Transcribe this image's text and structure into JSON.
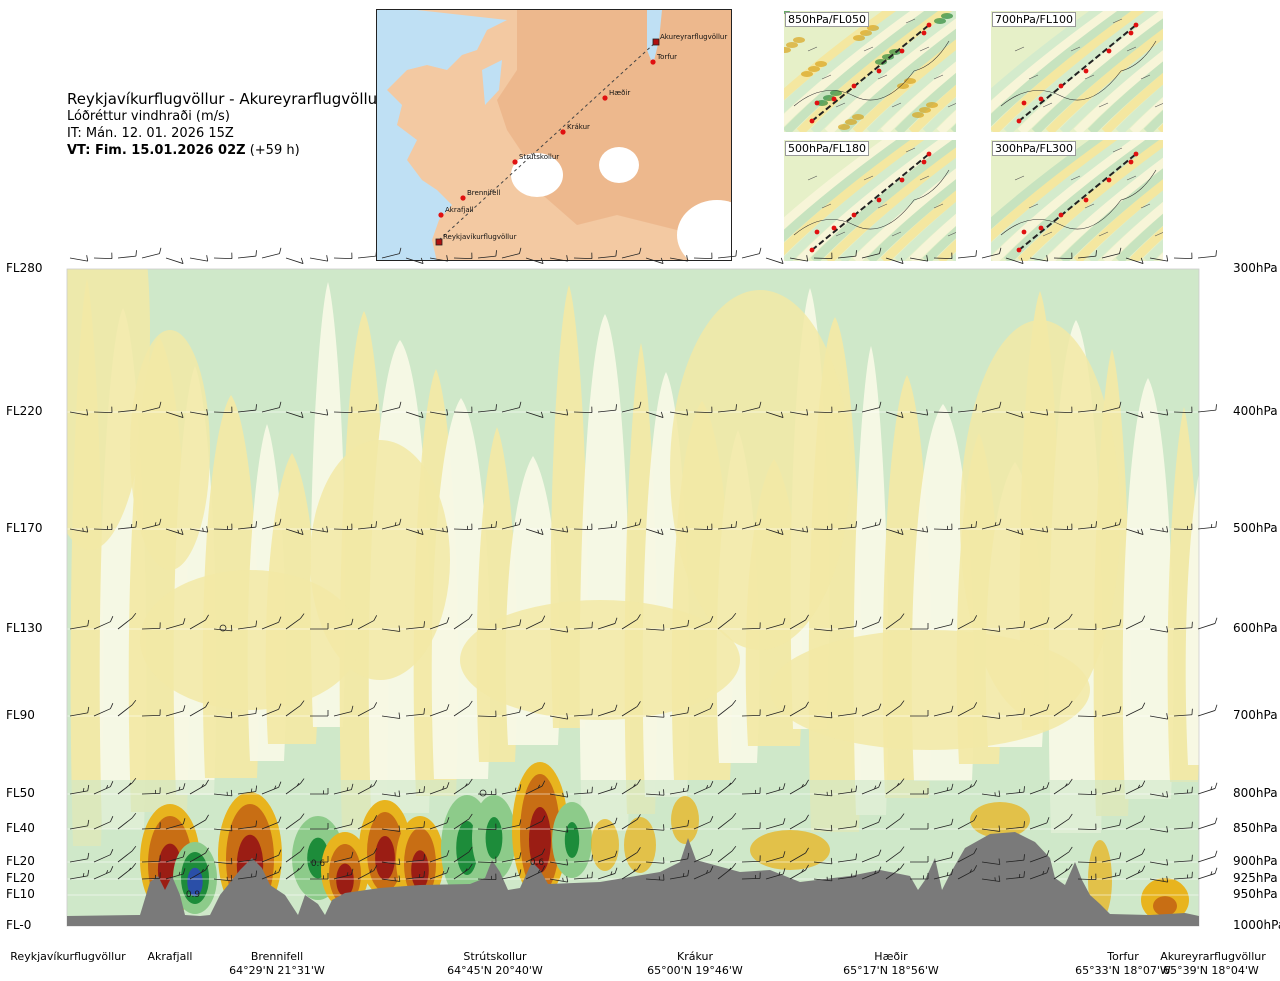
{
  "header": {
    "title": "Reykjavíkurflugvöllur - Akureyrarflugvöllur",
    "subtitle": "Lóðréttur vindhraði (m/s)",
    "issue_time": "IT: Mán. 12. 01. 2026 15Z",
    "valid_time_bold": "VT: Fim. 15.01.2026 02Z",
    "valid_time_offset": "(+59 h)"
  },
  "map_inset": {
    "waypoints": [
      {
        "name": "Akureyrarflugvöllur"
      },
      {
        "name": "Torfur"
      },
      {
        "name": "Hæðir"
      },
      {
        "name": "Krákur"
      },
      {
        "name": "Strútskollur"
      },
      {
        "name": "Brennifell"
      },
      {
        "name": "Akrafjall"
      },
      {
        "name": "Reykjavíkurflugvöllur"
      }
    ]
  },
  "mini_maps": [
    {
      "label": "850hPa/FL050"
    },
    {
      "label": "700hPa/FL100"
    },
    {
      "label": "500hPa/FL180"
    },
    {
      "label": "300hPa/FL300"
    }
  ],
  "chart_data": {
    "type": "heatmap",
    "title": "Reykjavíkurflugvöllur - Akureyrarflugvöllur",
    "variable": "Lóðréttur vindhraði (m/s)",
    "y_levels_fl": [
      "FL280",
      "FL220",
      "FL170",
      "FL130",
      "FL90",
      "FL50",
      "FL40",
      "FL20",
      "FL20",
      "FL10",
      "FL-0"
    ],
    "y_levels_hpa": [
      "300hPa",
      "400hPa",
      "500hPa",
      "600hPa",
      "700hPa",
      "800hPa",
      "850hPa",
      "900hPa",
      "925hPa",
      "950hPa",
      "1000hPa"
    ],
    "x_locations": [
      {
        "name": "Reykjavíkurflugvöllur",
        "coord": ""
      },
      {
        "name": "Akrafjall",
        "coord": ""
      },
      {
        "name": "Brennifell",
        "coord": "64°29'N 21°31'W"
      },
      {
        "name": "Strútskollur",
        "coord": "64°45'N 20°40'W"
      },
      {
        "name": "Krákur",
        "coord": "65°00'N 19°46'W"
      },
      {
        "name": "Hæðir",
        "coord": "65°17'N 18°56'W"
      },
      {
        "name": "Torfur",
        "coord": "65°33'N 18°07'W"
      },
      {
        "name": "Akureyrarflugvöllur",
        "coord": "65°39'N 18°04'W"
      }
    ],
    "annotations": [
      "0.9",
      "0.6",
      "0.6"
    ],
    "colors": {
      "strong_down": "#9b1d14",
      "moderate_down": "#c86e14",
      "weak_down": "#e8b41e",
      "slight_down": "#f2e9a6",
      "neutral": "#f7f9e6",
      "slight_up": "#cfe8c9",
      "weak_up": "#8dcb8a",
      "strong_up": "#1d8c3a",
      "very_strong_up": "#2a4fa8",
      "terrain": "#7a7a7a"
    }
  }
}
